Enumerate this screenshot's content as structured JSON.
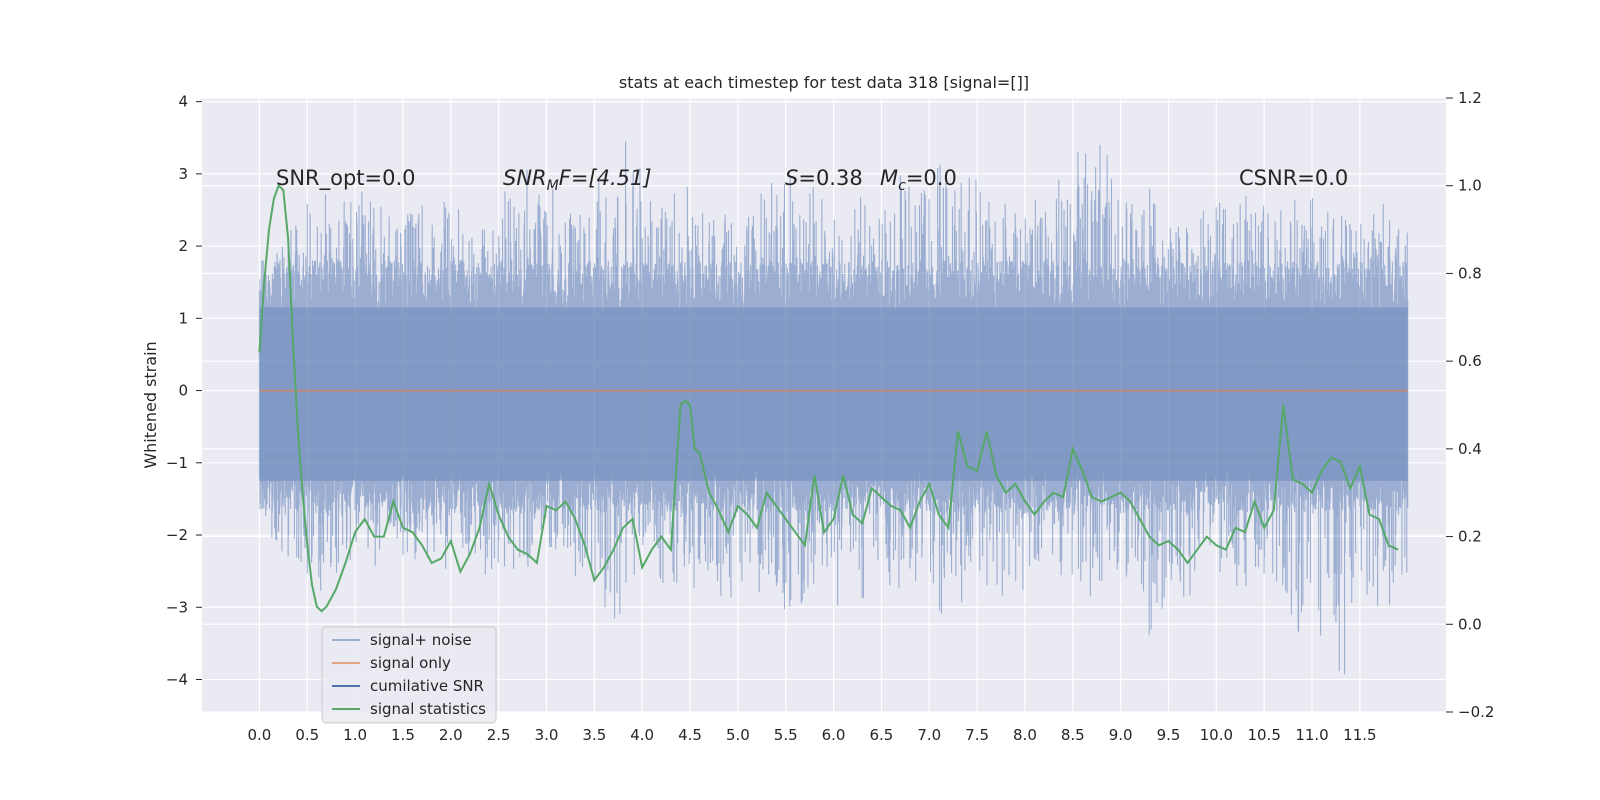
{
  "chart_data": {
    "type": "line",
    "title": "stats at each timestep for test data 318 [signal=[]]",
    "ylabel": "Whitened strain",
    "xlabel": "",
    "xlim": [
      -0.6,
      12.4
    ],
    "ylim": [
      -4.45,
      4.05
    ],
    "y2lim": [
      -0.2,
      1.2
    ],
    "xticks": [
      "0.0",
      "0.5",
      "1.0",
      "1.5",
      "2.0",
      "2.5",
      "3.0",
      "3.5",
      "4.0",
      "4.5",
      "5.0",
      "5.5",
      "6.0",
      "6.5",
      "7.0",
      "7.5",
      "8.0",
      "8.5",
      "9.0",
      "9.5",
      "10.0",
      "10.5",
      "11.0",
      "11.5"
    ],
    "yticks": [
      "−4",
      "−3",
      "−2",
      "−1",
      "0",
      "1",
      "2",
      "3",
      "4"
    ],
    "y2ticks": [
      "−0.2",
      "0.0",
      "0.2",
      "0.4",
      "0.6",
      "0.8",
      "1.0",
      "1.2"
    ],
    "annotations": {
      "snr_opt": "SNR_opt=0.0",
      "snr_mf_main": "SNR",
      "snr_mf_sub": "M",
      "snr_mf_rest": "F=[4.51]",
      "s_var": "S",
      "s_val": "=0.38",
      "mc_var": "M",
      "mc_sub": "c",
      "mc_val": "=0.0",
      "csnr": "CSNR=0.0"
    },
    "legend_position": "lower-left",
    "series": [
      {
        "name": "signal+ noise",
        "color": "#4c72b0",
        "style": "noise",
        "x_range": [
          0.0,
          12.0
        ],
        "envelope_pos": [
          1.2,
          2.6,
          2.8,
          2.9,
          2.5,
          3.0,
          2.7,
          2.5,
          3.2,
          2.8,
          2.6,
          3.7,
          2.7,
          2.9,
          2.5,
          2.7,
          3.0,
          2.8,
          2.6,
          2.9,
          3.3,
          3.4,
          2.9,
          2.7,
          2.8,
          3.4,
          3.5,
          2.9,
          2.6,
          2.9,
          2.8,
          2.6,
          2.7,
          2.7,
          2.6,
          2.7
        ],
        "envelope_neg": [
          -2.0,
          -2.8,
          -3.2,
          -2.6,
          -2.3,
          -2.4,
          -2.5,
          -2.8,
          -2.5,
          -2.5,
          -2.9,
          -3.4,
          -2.6,
          -2.9,
          -3.0,
          -2.7,
          -3.3,
          -2.8,
          -3.1,
          -2.7,
          -2.8,
          -3.2,
          -2.7,
          -3.0,
          -2.7,
          -2.9,
          -2.8,
          -3.5,
          -3.1,
          -2.6,
          -2.9,
          -3.3,
          -3.5,
          -4.1,
          -3.2,
          -2.8
        ],
        "values": [
          -0.5,
          0.8,
          1.7,
          0.6,
          -1.2,
          1.9,
          -0.4,
          0.3,
          1.1,
          -1.7,
          0.9,
          -0.2,
          2.1,
          -0.9,
          0.4,
          1.5
        ]
      },
      {
        "name": "signal only",
        "color": "#dd8452",
        "values_constant": 0.0
      },
      {
        "name": "cumilative SNR",
        "color": "#4c72b0"
      },
      {
        "name": "signal statistics",
        "color": "#55a868",
        "axis": "right",
        "x": [
          0.0,
          0.05,
          0.1,
          0.15,
          0.2,
          0.25,
          0.3,
          0.35,
          0.4,
          0.45,
          0.5,
          0.55,
          0.6,
          0.65,
          0.7,
          0.75,
          0.8,
          0.9,
          1.0,
          1.1,
          1.2,
          1.3,
          1.4,
          1.5,
          1.6,
          1.7,
          1.8,
          1.9,
          2.0,
          2.1,
          2.2,
          2.3,
          2.4,
          2.5,
          2.6,
          2.7,
          2.8,
          2.9,
          3.0,
          3.1,
          3.2,
          3.3,
          3.4,
          3.5,
          3.6,
          3.7,
          3.8,
          3.9,
          4.0,
          4.1,
          4.2,
          4.3,
          4.4,
          4.45,
          4.5,
          4.55,
          4.6,
          4.7,
          4.8,
          4.9,
          5.0,
          5.1,
          5.2,
          5.3,
          5.4,
          5.5,
          5.6,
          5.7,
          5.8,
          5.9,
          6.0,
          6.1,
          6.2,
          6.3,
          6.4,
          6.5,
          6.6,
          6.7,
          6.8,
          6.9,
          7.0,
          7.1,
          7.2,
          7.3,
          7.4,
          7.5,
          7.6,
          7.7,
          7.8,
          7.9,
          8.0,
          8.1,
          8.2,
          8.3,
          8.4,
          8.5,
          8.6,
          8.7,
          8.8,
          8.9,
          9.0,
          9.1,
          9.2,
          9.3,
          9.4,
          9.5,
          9.6,
          9.7,
          9.8,
          9.9,
          10.0,
          10.1,
          10.2,
          10.3,
          10.4,
          10.5,
          10.6,
          10.7,
          10.8,
          10.9,
          11.0,
          11.1,
          11.2,
          11.3,
          11.4,
          11.5,
          11.6,
          11.7,
          11.8,
          11.9
        ],
        "values": [
          0.62,
          0.78,
          0.9,
          0.97,
          1.0,
          0.99,
          0.88,
          0.65,
          0.45,
          0.3,
          0.18,
          0.09,
          0.04,
          0.03,
          0.04,
          0.06,
          0.08,
          0.14,
          0.21,
          0.24,
          0.2,
          0.2,
          0.28,
          0.22,
          0.21,
          0.18,
          0.14,
          0.15,
          0.19,
          0.12,
          0.16,
          0.22,
          0.32,
          0.25,
          0.2,
          0.17,
          0.16,
          0.14,
          0.27,
          0.26,
          0.28,
          0.24,
          0.18,
          0.1,
          0.13,
          0.17,
          0.22,
          0.24,
          0.13,
          0.17,
          0.2,
          0.17,
          0.5,
          0.51,
          0.5,
          0.4,
          0.39,
          0.3,
          0.26,
          0.21,
          0.27,
          0.25,
          0.22,
          0.3,
          0.27,
          0.24,
          0.21,
          0.18,
          0.34,
          0.21,
          0.24,
          0.34,
          0.25,
          0.23,
          0.31,
          0.29,
          0.27,
          0.26,
          0.22,
          0.28,
          0.32,
          0.25,
          0.22,
          0.44,
          0.36,
          0.35,
          0.44,
          0.34,
          0.3,
          0.32,
          0.28,
          0.25,
          0.28,
          0.3,
          0.29,
          0.4,
          0.35,
          0.29,
          0.28,
          0.29,
          0.3,
          0.28,
          0.24,
          0.2,
          0.18,
          0.19,
          0.17,
          0.14,
          0.17,
          0.2,
          0.18,
          0.17,
          0.22,
          0.21,
          0.28,
          0.22,
          0.26,
          0.5,
          0.33,
          0.32,
          0.3,
          0.35,
          0.38,
          0.37,
          0.31,
          0.36,
          0.25,
          0.24,
          0.18,
          0.17
        ]
      }
    ]
  }
}
